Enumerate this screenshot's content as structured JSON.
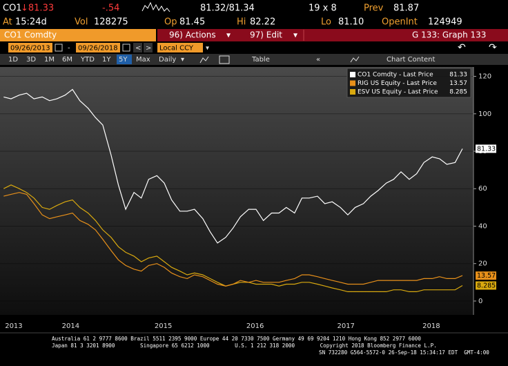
{
  "quote": {
    "ticker": "CO1",
    "last": "↓81.33",
    "change": "-.54",
    "bid_ask": "81.32/81.34",
    "size": "19 x 8",
    "prev_label": "Prev",
    "prev": "81.87",
    "at_label": "At",
    "time": "15:24d",
    "vol_label": "Vol",
    "vol": "128275",
    "open_label": "Op",
    "open": "81.45",
    "high_label": "Hi",
    "high": "82.22",
    "low_label": "Lo",
    "low": "81.10",
    "oi_label": "OpenInt",
    "oi": "124949"
  },
  "toolbar": {
    "security": "CO1 Comdty",
    "actions": "96) Actions",
    "edit": "97) Edit",
    "graph": "G 133: Graph 133",
    "start_date": "09/26/2013",
    "end_date": "09/26/2018",
    "currency": "Local CCY",
    "ranges": [
      "1D",
      "3D",
      "1M",
      "6M",
      "YTD",
      "1Y",
      "5Y",
      "Max"
    ],
    "selected_range": 6,
    "frequency": "Daily",
    "table": "Table",
    "chart_content": "Chart Content"
  },
  "chart_data": {
    "type": "line",
    "x": [
      2013.74,
      2013.82,
      2013.91,
      2013.99,
      2014.07,
      2014.16,
      2014.24,
      2014.32,
      2014.41,
      2014.49,
      2014.57,
      2014.66,
      2014.74,
      2014.82,
      2014.91,
      2014.99,
      2015.07,
      2015.16,
      2015.24,
      2015.32,
      2015.41,
      2015.49,
      2015.57,
      2015.66,
      2015.74,
      2015.82,
      2015.91,
      2015.99,
      2016.07,
      2016.16,
      2016.24,
      2016.32,
      2016.41,
      2016.49,
      2016.57,
      2016.66,
      2016.74,
      2016.82,
      2016.91,
      2016.99,
      2017.07,
      2017.16,
      2017.24,
      2017.32,
      2017.41,
      2017.49,
      2017.57,
      2017.66,
      2017.74,
      2017.82,
      2017.91,
      2017.99,
      2018.07,
      2018.16,
      2018.24,
      2018.32,
      2018.41,
      2018.49,
      2018.57,
      2018.66,
      2018.74
    ],
    "series": [
      {
        "name": "CO1 Comdty - Last Price",
        "color": "#ffffff",
        "label_text": "#000000",
        "values": [
          109,
          108,
          110,
          111,
          108,
          109,
          107,
          108,
          110,
          113,
          107,
          103,
          98,
          94,
          78,
          62,
          49,
          58,
          55,
          65,
          67,
          63,
          54,
          48,
          48,
          49,
          44,
          37,
          31,
          34,
          39,
          45,
          49,
          49,
          43,
          47,
          47,
          50,
          47,
          55,
          55,
          56,
          52,
          53,
          50,
          46,
          50,
          52,
          56,
          59,
          63,
          65,
          69,
          65,
          68,
          74,
          77,
          76,
          73,
          74,
          81.33
        ]
      },
      {
        "name": "RIG US Equity - Last Price",
        "color": "#e8901a",
        "label_text": "#000000",
        "values": [
          56,
          57,
          58,
          57,
          52,
          46,
          44,
          45,
          46,
          47,
          43,
          41,
          38,
          33,
          27,
          22,
          19,
          17,
          16,
          19,
          20,
          18,
          15,
          13,
          12,
          14,
          13,
          11,
          9,
          8,
          9,
          11,
          10,
          11,
          10,
          10,
          10,
          11,
          12,
          14,
          14,
          13,
          12,
          11,
          10,
          9,
          9,
          9,
          10,
          11,
          11,
          11,
          11,
          11,
          11,
          12,
          12,
          13,
          12,
          12,
          13.57
        ]
      },
      {
        "name": "ESV US Equity - Last Price",
        "color": "#d9a90f",
        "label_text": "#000000",
        "values": [
          60,
          62,
          60,
          58,
          55,
          50,
          49,
          51,
          53,
          54,
          50,
          47,
          43,
          38,
          34,
          29,
          26,
          24,
          21,
          23,
          24,
          21,
          18,
          16,
          14,
          15,
          14,
          12,
          10,
          8,
          9,
          10,
          10,
          9,
          9,
          9,
          8,
          9,
          9,
          10,
          10,
          9,
          8,
          7,
          6,
          5,
          5,
          5,
          5,
          5,
          5,
          6,
          6,
          5,
          5,
          6,
          6,
          6,
          6,
          6,
          8.285
        ]
      }
    ],
    "xlim": [
      2013.7,
      2018.86
    ],
    "xticks": [
      {
        "value": 2013.85,
        "label": "2013"
      },
      {
        "value": 2014.47,
        "label": "2014"
      },
      {
        "value": 2015.48,
        "label": "2015"
      },
      {
        "value": 2016.48,
        "label": "2016"
      },
      {
        "value": 2017.47,
        "label": "2017"
      },
      {
        "value": 2018.4,
        "label": "2018"
      }
    ],
    "ylim": [
      -7.4,
      125
    ],
    "yticks": [
      0,
      20,
      40,
      60,
      80,
      100,
      120
    ],
    "grid": true
  },
  "footer": {
    "lines": [
      "Australia 61 2 9777 8600 Brazil 5511 2395 9000 Europe 44 20 7330 7500 Germany 49 69 9204 1210 Hong Kong 852 2977 6000",
      "Japan 81 3 3201 8900        Singapore 65 6212 1000        U.S. 1 212 318 2000        Copyright 2018 Bloomberg Finance L.P.",
      "SN 732280 G564-5572-0 26-Sep-18 15:34:17 EDT  GMT-4:00"
    ]
  }
}
